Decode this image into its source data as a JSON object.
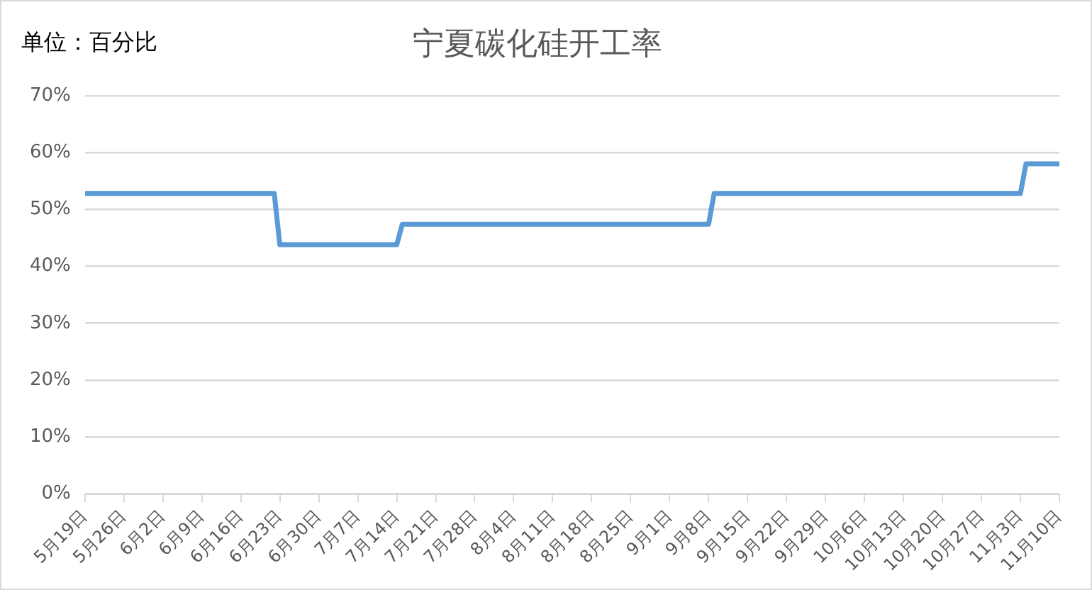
{
  "chart_data": {
    "type": "line",
    "title": "宁夏碳化硅开工率",
    "annotations": [
      "单位：百分比"
    ],
    "series": [
      {
        "color": "#5b9bd5",
        "x": [
          "--05-19",
          "--06-22",
          "--06-23",
          "--07-14",
          "--07-15",
          "--09-08",
          "--09-09",
          "--11-03",
          "--11-04",
          "--11-10"
        ],
        "values": [
          52.8,
          52.8,
          43.8,
          43.8,
          47.4,
          47.4,
          52.8,
          52.8,
          58.0,
          58.0
        ]
      }
    ],
    "xlim": [
      "--05-19",
      "--11-10"
    ],
    "xticks": [
      {
        "value": "--05-19",
        "label": "5月19日"
      },
      {
        "value": "--05-26",
        "label": "5月26日"
      },
      {
        "value": "--06-02",
        "label": "6月2日"
      },
      {
        "value": "--06-09",
        "label": "6月9日"
      },
      {
        "value": "--06-16",
        "label": "6月16日"
      },
      {
        "value": "--06-23",
        "label": "6月23日"
      },
      {
        "value": "--06-30",
        "label": "6月30日"
      },
      {
        "value": "--07-07",
        "label": "7月7日"
      },
      {
        "value": "--07-14",
        "label": "7月14日"
      },
      {
        "value": "--07-21",
        "label": "7月21日"
      },
      {
        "value": "--07-28",
        "label": "7月28日"
      },
      {
        "value": "--08-04",
        "label": "8月4日"
      },
      {
        "value": "--08-11",
        "label": "8月11日"
      },
      {
        "value": "--08-18",
        "label": "8月18日"
      },
      {
        "value": "--08-25",
        "label": "8月25日"
      },
      {
        "value": "--09-01",
        "label": "9月1日"
      },
      {
        "value": "--09-08",
        "label": "9月8日"
      },
      {
        "value": "--09-15",
        "label": "9月15日"
      },
      {
        "value": "--09-22",
        "label": "9月22日"
      },
      {
        "value": "--09-29",
        "label": "9月29日"
      },
      {
        "value": "--10-06",
        "label": "10月6日"
      },
      {
        "value": "--10-13",
        "label": "10月13日"
      },
      {
        "value": "--10-20",
        "label": "10月20日"
      },
      {
        "value": "--10-27",
        "label": "10月27日"
      },
      {
        "value": "--11-03",
        "label": "11月3日"
      },
      {
        "value": "--11-10",
        "label": "11月10日"
      }
    ],
    "ylim": [
      0,
      70
    ],
    "yticks": [
      {
        "value": 0,
        "label": "0%"
      },
      {
        "value": 10,
        "label": "10%"
      },
      {
        "value": 20,
        "label": "20%"
      },
      {
        "value": 30,
        "label": "30%"
      },
      {
        "value": 40,
        "label": "40%"
      },
      {
        "value": 50,
        "label": "50%"
      },
      {
        "value": 60,
        "label": "60%"
      },
      {
        "value": 70,
        "label": "70%"
      }
    ],
    "grid": "y",
    "legend": false,
    "marker": "none",
    "line_style": "solid"
  }
}
